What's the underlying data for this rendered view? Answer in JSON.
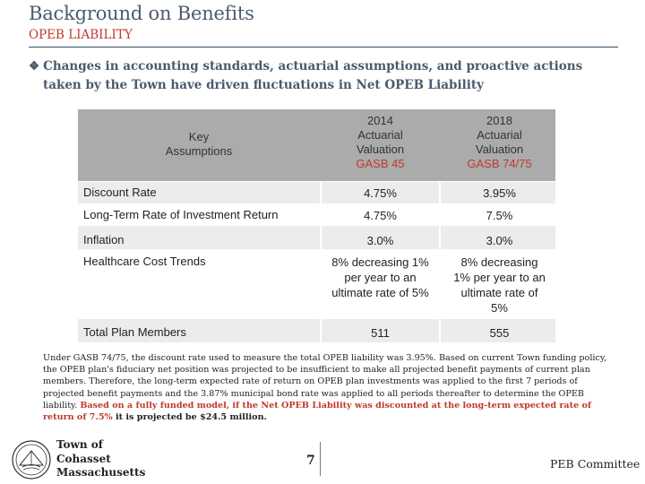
{
  "header": {
    "title": "Background on Benefits",
    "subtitle": "OPEB LIABILITY"
  },
  "bullet": {
    "mark": "❖",
    "line1": "Changes in accounting standards, actuarial assumptions, and proactive actions",
    "line2": "taken by the Town have driven fluctuations in Net OPEB Liability"
  },
  "table": {
    "key_header": [
      "Key",
      "Assumptions"
    ],
    "col1": {
      "lines": [
        "2014",
        "Actuarial",
        "Valuation"
      ],
      "gasb": "GASB 45"
    },
    "col2": {
      "lines": [
        "2018",
        "Actuarial",
        "Valuation"
      ],
      "gasb": "GASB 74/75"
    },
    "rows": [
      {
        "label": "Discount Rate",
        "v1": "4.75%",
        "v2": "3.95%"
      },
      {
        "label": "Long-Term Rate of Investment Return",
        "v1": "4.75%",
        "v2": "7.5%"
      },
      {
        "label": "Inflation",
        "v1": "3.0%",
        "v2": "3.0%"
      },
      {
        "label": "Healthcare Cost Trends",
        "v1": [
          "8% decreasing 1%",
          "per year to an",
          "ultimate rate of 5%"
        ],
        "v2": [
          "8% decreasing",
          "1% per year to an",
          "ultimate rate of",
          "5%"
        ]
      },
      {
        "label": "Total Plan Members",
        "v1": "511",
        "v2": "555"
      }
    ]
  },
  "footnote": {
    "normal": "Under GASB 74/75, the discount rate used to measure the total OPEB liability was 3.95%.  Based on current Town funding policy, the OPEB plan's fiduciary net position was projected to be insufficient to make all projected benefit payments of current plan members.  Therefore, the long-term expected rate of return on OPEB plan investments was applied to the first 7 periods of projected benefit payments and the 3.87% municipal bond rate was applied to all periods thereafter to determine the OPEB liability.",
    "highlight": "Based on a fully funded model, if the Net OPEB Liability was discounted at the long-term expected rate of return of 7.5%",
    "highlight_tail": " it is projected be $24.5 million."
  },
  "footer": {
    "town_lines": [
      "Town of",
      "Cohasset",
      "Massachusetts"
    ],
    "page_number": "7",
    "committee": "PEB Committee"
  },
  "colors": {
    "title": "#4a5b6d",
    "accent_red": "#c0392b",
    "table_header": "#ababab",
    "table_band": "#ececec"
  }
}
